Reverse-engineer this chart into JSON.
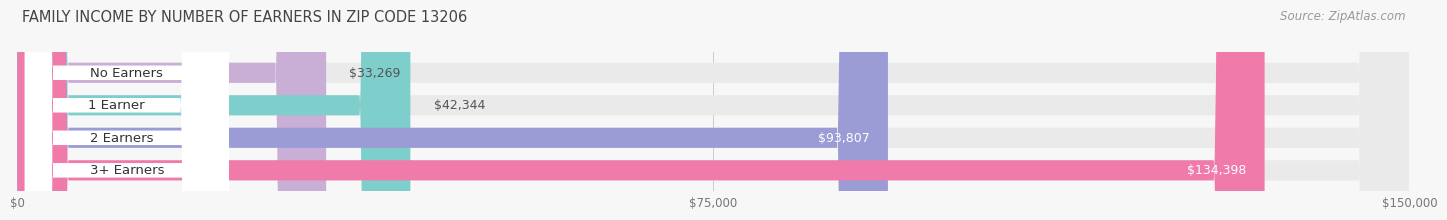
{
  "title": "FAMILY INCOME BY NUMBER OF EARNERS IN ZIP CODE 13206",
  "source": "Source: ZipAtlas.com",
  "categories": [
    "No Earners",
    "1 Earner",
    "2 Earners",
    "3+ Earners"
  ],
  "values": [
    33269,
    42344,
    93807,
    134398
  ],
  "bar_colors": [
    "#c9aed6",
    "#7ecfcc",
    "#9b9cd6",
    "#f07aaa"
  ],
  "bar_bg_color": "#eaeaea",
  "background_color": "#f7f7f7",
  "xlim": [
    0,
    150000
  ],
  "xticks": [
    0,
    75000,
    150000
  ],
  "xtick_labels": [
    "$0",
    "$75,000",
    "$150,000"
  ],
  "title_fontsize": 10.5,
  "source_fontsize": 8.5,
  "label_fontsize": 9.5,
  "value_fontsize": 9,
  "value_threshold": 80000,
  "value_inside_color": "#ffffff",
  "value_outside_color": "#555555"
}
